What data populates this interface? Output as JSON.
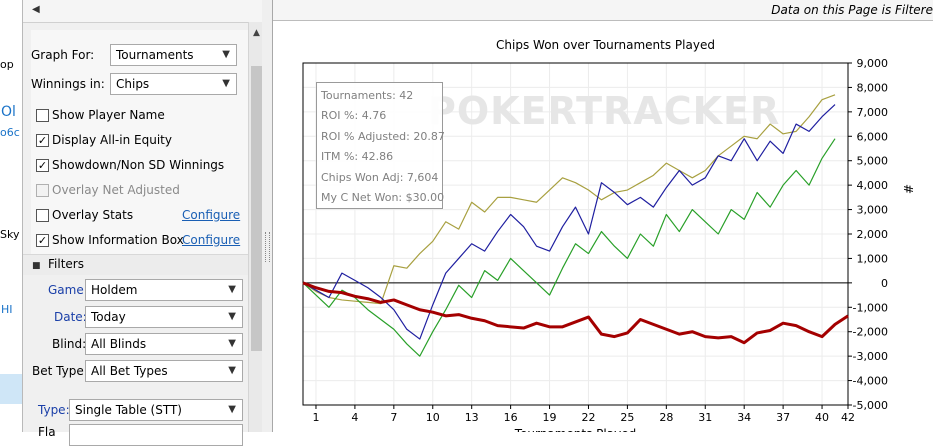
{
  "background_fragments": [
    "op",
    "Ol",
    "o6c",
    "Sky",
    "HI"
  ],
  "panel": {
    "collapse_icon": "left-triangle-icon",
    "graph_for": {
      "label": "Graph For:",
      "value": "Tournaments"
    },
    "winnings_in": {
      "label": "Winnings in:",
      "value": "Chips"
    },
    "checkboxes": [
      {
        "label": "Show Player Name",
        "checked": false,
        "disabled": false
      },
      {
        "label": "Display All-in Equity",
        "checked": true,
        "disabled": false
      },
      {
        "label": "Showdown/Non SD Winnings",
        "checked": true,
        "disabled": false
      },
      {
        "label": "Overlay Net Adjusted",
        "checked": false,
        "disabled": true
      },
      {
        "label": "Overlay Stats",
        "checked": false,
        "disabled": false,
        "link": "Configure"
      },
      {
        "label": "Show Information Box",
        "checked": true,
        "disabled": false,
        "link": "Configure"
      }
    ],
    "filters_header": "Filters",
    "filters": [
      {
        "label": "Game:",
        "value": "Holdem",
        "label_color": "#1a3fa8"
      },
      {
        "label": "Date:",
        "value": "Today",
        "label_color": "#1a3fa8"
      },
      {
        "label": "Blind:",
        "value": "All Blinds",
        "label_color": "#000000"
      },
      {
        "label": "Bet Type:",
        "value": "All Bet Types",
        "label_color": "#000000"
      },
      {
        "label": "Type:",
        "value": "Single Table (STT)",
        "label_color": "#1a3fa8"
      },
      {
        "label": "Fla",
        "value": "",
        "label_color": "#000000"
      }
    ]
  },
  "graph": {
    "top_note": "Data on this Page is Filtere",
    "watermark": "POKERTRACKER",
    "info_box": [
      "Tournaments: 42",
      "ROI %: 4.76",
      "ROI % Adjusted: 20.87",
      "ITM %: 42.86",
      "Chips Won Adj: 7,604",
      "My C Net Won: $30.00"
    ]
  },
  "chart_data": {
    "type": "line",
    "title": "Chips Won over Tournaments Played",
    "ylabel": "#",
    "xlabel": "Tournaments Played",
    "xlim": [
      0,
      42
    ],
    "ylim": [
      -5000,
      9000
    ],
    "x_ticks": [
      1,
      4,
      7,
      10,
      13,
      16,
      19,
      22,
      25,
      28,
      31,
      34,
      37,
      40,
      42
    ],
    "y_ticks": [
      "9,000",
      "8,000",
      "7,000",
      "6,000",
      "5,000",
      "4,000",
      "3,000",
      "2,000",
      "1,000",
      "0",
      "-1,000",
      "-2,000",
      "-3,000",
      "-4,000",
      "-5,000"
    ],
    "y_tick_values": [
      9000,
      8000,
      7000,
      6000,
      5000,
      4000,
      3000,
      2000,
      1000,
      0,
      -1000,
      -2000,
      -3000,
      -4000,
      -5000
    ],
    "grid": true,
    "series": [
      {
        "color": "#a8a040",
        "values": [
          0,
          -350,
          -600,
          -700,
          -750,
          -800,
          -850,
          700,
          600,
          1200,
          1700,
          2500,
          2200,
          3300,
          2900,
          3500,
          3500,
          3400,
          3300,
          3800,
          4300,
          4100,
          3800,
          3400,
          3700,
          3800,
          4100,
          4400,
          4900,
          4600,
          4300,
          4600,
          5200,
          5600,
          6000,
          5900,
          6500,
          6100,
          6200,
          6800,
          7500,
          7700
        ]
      },
      {
        "color": "#1f1fa0",
        "values": [
          0,
          -300,
          -600,
          400,
          100,
          -200,
          -600,
          -1100,
          -1900,
          -2300,
          -900,
          400,
          1000,
          1600,
          1300,
          2100,
          2800,
          2300,
          1500,
          1300,
          2300,
          3100,
          2000,
          4100,
          3700,
          3200,
          3500,
          3100,
          3900,
          4600,
          4000,
          4300,
          5200,
          5000,
          5900,
          5000,
          5800,
          5300,
          6500,
          6200,
          6800,
          7300
        ]
      },
      {
        "color": "#29a029",
        "values": [
          0,
          -500,
          -1000,
          -300,
          -600,
          -1100,
          -1500,
          -1900,
          -2500,
          -3000,
          -2000,
          -1100,
          -100,
          -600,
          500,
          100,
          1000,
          500,
          0,
          -500,
          600,
          1600,
          1200,
          2100,
          1500,
          1000,
          2000,
          1500,
          2800,
          2100,
          3000,
          2500,
          2000,
          3000,
          2600,
          3700,
          3100,
          4000,
          4600,
          4000,
          5100,
          5900
        ]
      },
      {
        "color": "#a40000",
        "values": [
          0,
          -200,
          -350,
          -400,
          -550,
          -650,
          -800,
          -700,
          -900,
          -1100,
          -1200,
          -1350,
          -1300,
          -1450,
          -1550,
          -1750,
          -1800,
          -1850,
          -1650,
          -1800,
          -1800,
          -1600,
          -1400,
          -2100,
          -2200,
          -2050,
          -1500,
          -1700,
          -1900,
          -2100,
          -2000,
          -2200,
          -2250,
          -2200,
          -2450,
          -2050,
          -1950,
          -1650,
          -1750,
          -2000,
          -2200,
          -1700,
          -1350
        ]
      }
    ]
  }
}
